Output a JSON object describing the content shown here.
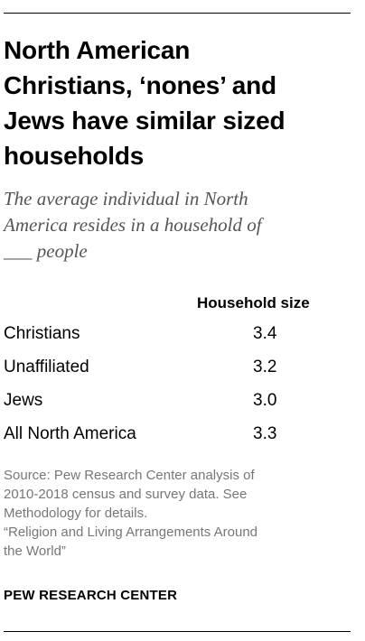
{
  "title_lines": [
    "North American",
    "Christians, ‘nones’ and",
    "Jews have similar sized",
    "households"
  ],
  "subtitle_lines": [
    "The average individual in North",
    "America resides in a household of",
    "___ people"
  ],
  "chart_data": {
    "type": "table",
    "column_header": "Household size",
    "rows": [
      {
        "label": "Christians",
        "value": "3.4"
      },
      {
        "label": "Unaffiliated",
        "value": "3.2"
      },
      {
        "label": "Jews",
        "value": "3.0"
      },
      {
        "label": "All North America",
        "value": "3.3"
      }
    ]
  },
  "source_lines": [
    "Source: Pew Research Center analysis of",
    "2010-2018 census and survey data. See",
    "Methodology for details.",
    "“Religion and Living Arrangements Around",
    "the World”"
  ],
  "brand": "PEW RESEARCH CENTER"
}
